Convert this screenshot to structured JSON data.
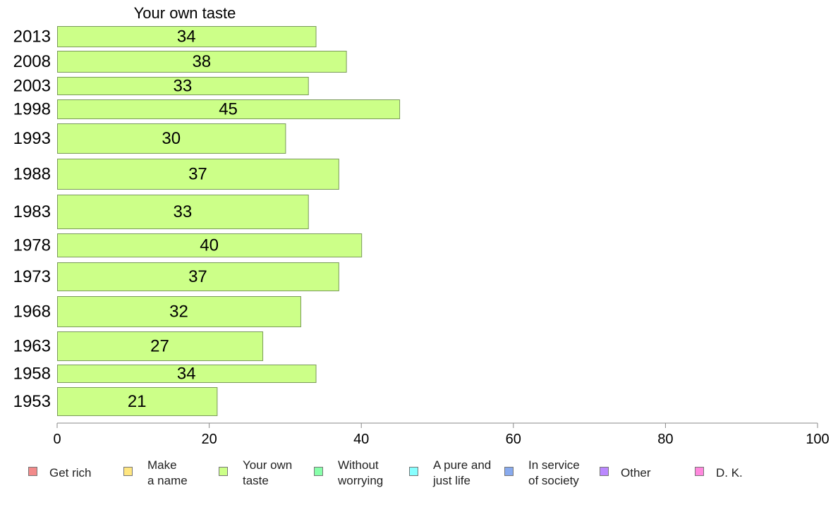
{
  "chart_data": {
    "type": "bar",
    "orientation": "horizontal",
    "title": "Your own taste",
    "categories": [
      "2013",
      "2008",
      "2003",
      "1998",
      "1993",
      "1988",
      "1983",
      "1978",
      "1973",
      "1968",
      "1963",
      "1958",
      "1953"
    ],
    "series": [
      {
        "name": "Your own taste",
        "values": [
          34,
          38,
          33,
          45,
          30,
          37,
          33,
          40,
          37,
          32,
          27,
          34,
          21
        ]
      }
    ],
    "xlim": [
      0,
      100
    ],
    "xticks": [
      "0",
      "20",
      "40",
      "60",
      "80",
      "100"
    ],
    "grid": false,
    "legend_position": "bottom",
    "legend": [
      {
        "lines": [
          "Get rich"
        ],
        "color": "#f28a8a"
      },
      {
        "lines": [
          "Make",
          "a name"
        ],
        "color": "#ffe680"
      },
      {
        "lines": [
          "Your own",
          "taste"
        ],
        "color": "#ccff88"
      },
      {
        "lines": [
          "Without",
          "worrying"
        ],
        "color": "#88ffaa"
      },
      {
        "lines": [
          "A pure and",
          "just life"
        ],
        "color": "#88ffff"
      },
      {
        "lines": [
          "In service",
          "of society"
        ],
        "color": "#88aaee"
      },
      {
        "lines": [
          "Other"
        ],
        "color": "#bb88ff"
      },
      {
        "lines": [
          "D. K."
        ],
        "color": "#ff88dd"
      }
    ],
    "bar_color": "#ccff88",
    "bar_stroke": "#7a9a5a",
    "axis_color": "#888888"
  }
}
